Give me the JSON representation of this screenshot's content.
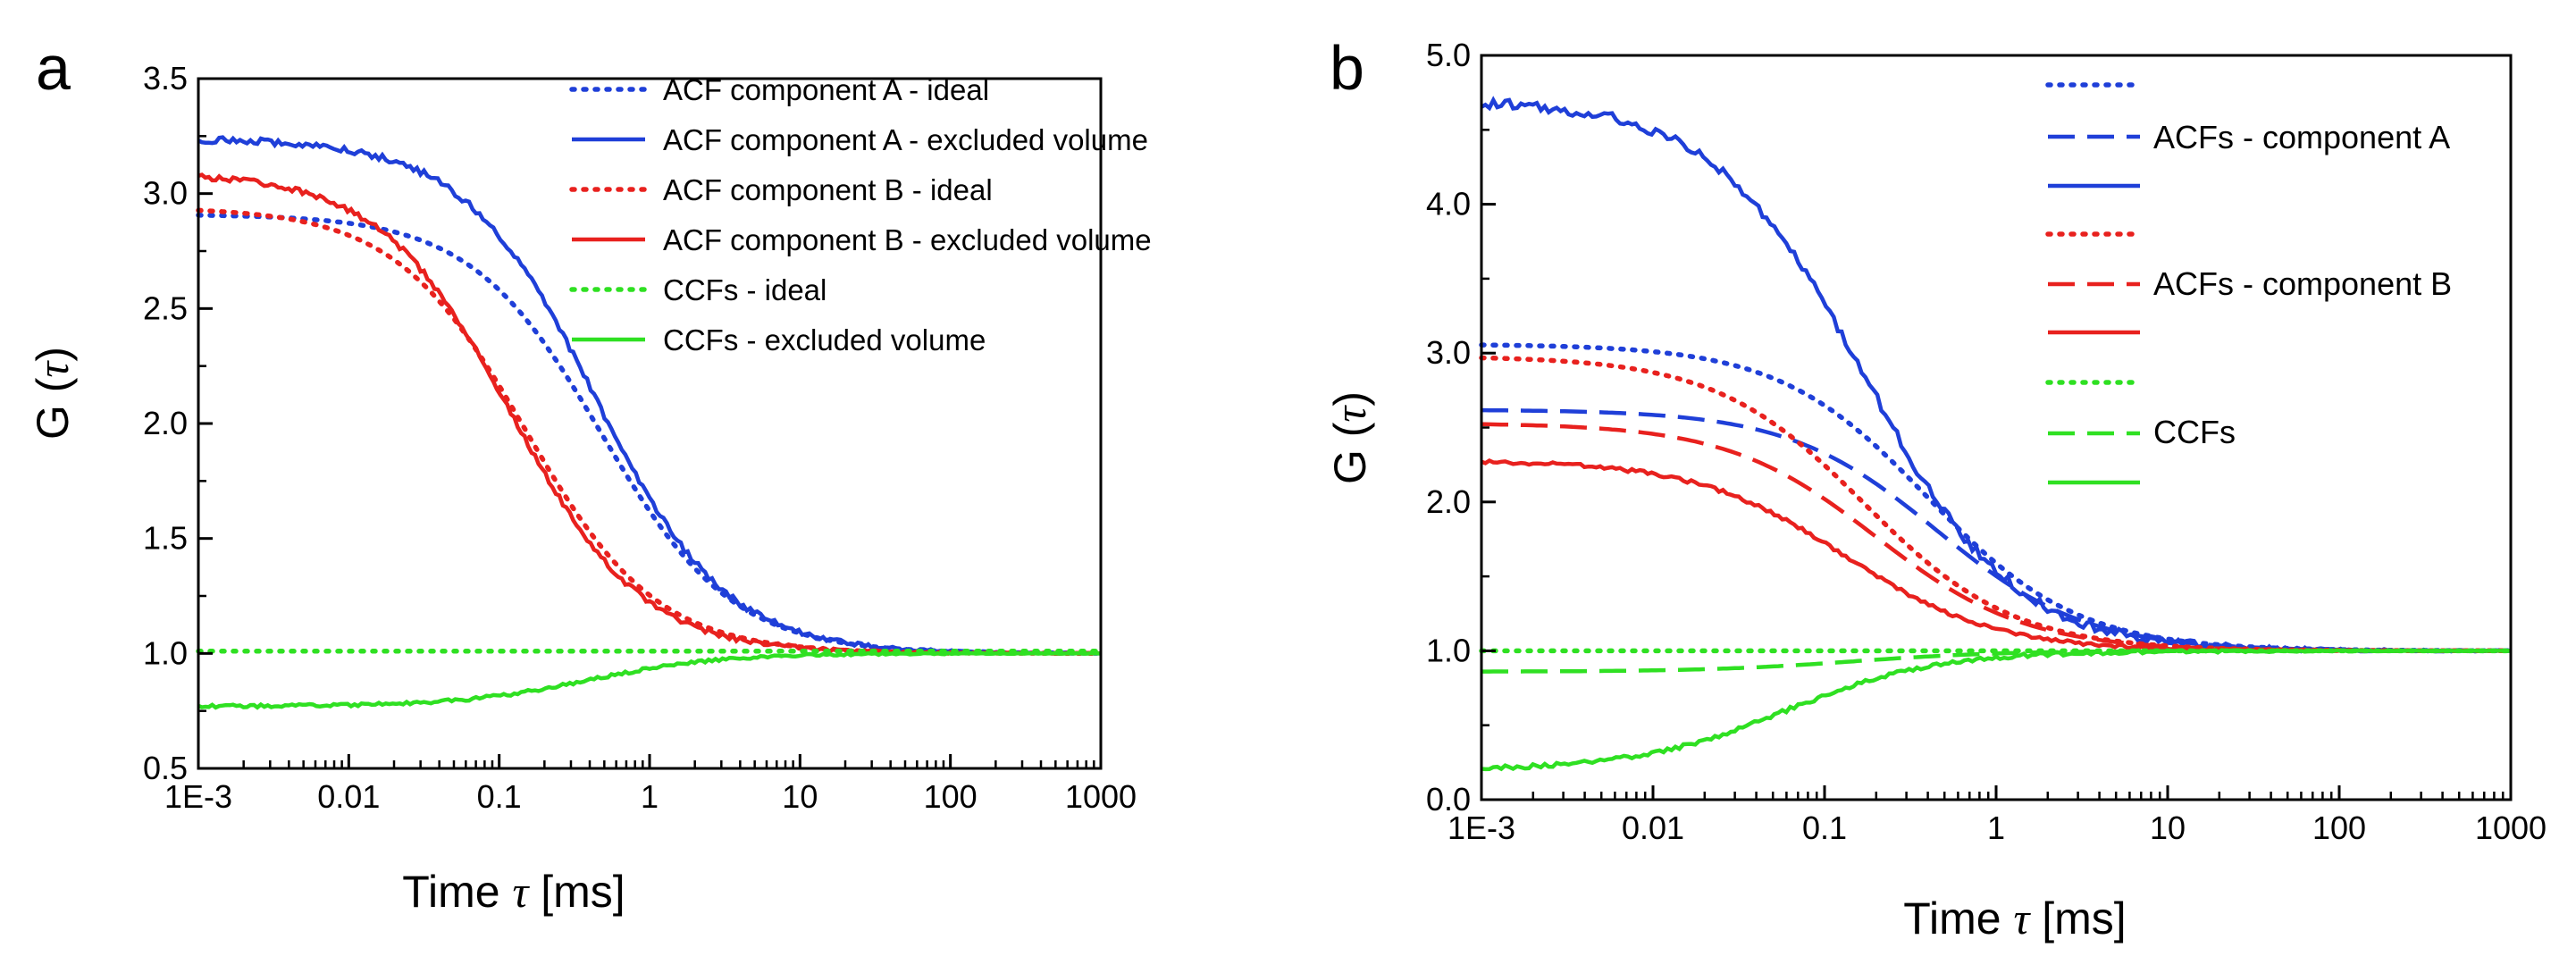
{
  "colors": {
    "blue": "#1f3fd8",
    "red": "#e8211e",
    "green": "#2fe022"
  },
  "chart_data": [
    {
      "panel": "a",
      "type": "line",
      "x_scale": "log",
      "xlabel": "Time",
      "xlabel_symbol": "τ",
      "xlabel_unit": "[ms]",
      "ylabel": "G",
      "ylabel_symbol": "τ",
      "xlim": [
        0.001,
        1000
      ],
      "ylim": [
        0.5,
        3.5
      ],
      "x_ticks": [
        0.001,
        0.01,
        0.1,
        1,
        10,
        100,
        1000
      ],
      "x_tick_labels": [
        "1E-3",
        "0.01",
        "0.1",
        "1",
        "10",
        "100",
        "1000"
      ],
      "y_ticks": [
        0.5,
        1.0,
        1.5,
        2.0,
        2.5,
        3.0,
        3.5
      ],
      "y_tick_labels": [
        "0.5",
        "1.0",
        "1.5",
        "2.0",
        "2.5",
        "3.0",
        "3.5"
      ],
      "legend_position": "top-right",
      "series": [
        {
          "name": "ACF component A - ideal",
          "color": "blue",
          "style": "dotted",
          "model": "decay",
          "G0": 2.91,
          "Ginf": 1.0,
          "tauD": 0.48,
          "noise": 0
        },
        {
          "name": "ACF component A - excluded volume",
          "color": "blue",
          "style": "solid",
          "model": "decay",
          "G0": 3.24,
          "Ginf": 1.0,
          "tauD": 0.43,
          "noise": 0.012
        },
        {
          "name": "ACF component B - ideal",
          "color": "red",
          "style": "dotted",
          "model": "decay",
          "G0": 2.94,
          "Ginf": 1.0,
          "tauD": 0.15,
          "noise": 0
        },
        {
          "name": "ACF component B - excluded volume",
          "color": "red",
          "style": "solid",
          "model": "decay",
          "G0": 3.09,
          "Ginf": 1.0,
          "tauD": 0.12,
          "noise": 0.01
        },
        {
          "name": "CCFs - ideal",
          "color": "green",
          "style": "dotted",
          "model": "flat",
          "G0": 1.01,
          "Ginf": 1.0,
          "tauD": 1,
          "noise": 0
        },
        {
          "name": "CCFs - excluded volume",
          "color": "green",
          "style": "solid",
          "model": "rise",
          "G0": 0.77,
          "Ginf": 1.0,
          "tauD": 0.4,
          "noise": 0.006
        }
      ]
    },
    {
      "panel": "b",
      "type": "line",
      "x_scale": "log",
      "xlabel": "Time",
      "xlabel_symbol": "τ",
      "xlabel_unit": "[ms]",
      "ylabel": "G",
      "ylabel_symbol": "τ",
      "xlim": [
        0.001,
        1000
      ],
      "ylim": [
        0.0,
        5.0
      ],
      "x_ticks": [
        0.001,
        0.01,
        0.1,
        1,
        10,
        100,
        1000
      ],
      "x_tick_labels": [
        "1E-3",
        "0.01",
        "0.1",
        "1",
        "10",
        "100",
        "1000"
      ],
      "y_ticks": [
        0.0,
        1.0,
        2.0,
        3.0,
        4.0,
        5.0
      ],
      "y_tick_labels": [
        "0.0",
        "1.0",
        "2.0",
        "3.0",
        "4.0",
        "5.0"
      ],
      "legend_position": "top-right",
      "legend_groups": [
        "ACFs - component A",
        "ACFs - component B",
        "CCFs"
      ],
      "series": [
        {
          "name": "ACFs - component A (dotted)",
          "color": "blue",
          "style": "dotted",
          "model": "decay",
          "G0": 3.06,
          "Ginf": 1.0,
          "tauD": 0.4,
          "noise": 0
        },
        {
          "name": "ACFs - component A (dashed)",
          "color": "blue",
          "style": "dashed",
          "model": "decay",
          "G0": 2.62,
          "Ginf": 1.0,
          "tauD": 0.45,
          "noise": 0
        },
        {
          "name": "ACFs - component A (solid)",
          "color": "blue",
          "style": "solid",
          "model": "decay",
          "G0": 4.7,
          "Ginf": 1.0,
          "tauD": 0.17,
          "noise": 0.03
        },
        {
          "name": "ACFs - component B (dotted)",
          "color": "red",
          "style": "dotted",
          "model": "decay",
          "G0": 2.98,
          "Ginf": 1.0,
          "tauD": 0.17,
          "noise": 0
        },
        {
          "name": "ACFs - component B (dashed)",
          "color": "red",
          "style": "dashed",
          "model": "decay",
          "G0": 2.53,
          "Ginf": 1.0,
          "tauD": 0.2,
          "noise": 0
        },
        {
          "name": "ACFs - component B (solid)",
          "color": "red",
          "style": "solid",
          "model": "decay",
          "G0": 2.28,
          "Ginf": 1.0,
          "tauD": 0.13,
          "noise": 0.01
        },
        {
          "name": "CCFs (dotted)",
          "color": "green",
          "style": "dotted",
          "model": "flat",
          "G0": 1.0,
          "Ginf": 1.0,
          "tauD": 1,
          "noise": 0
        },
        {
          "name": "CCFs (dashed)",
          "color": "green",
          "style": "dashed",
          "model": "rise",
          "G0": 0.86,
          "Ginf": 1.0,
          "tauD": 0.15,
          "noise": 0
        },
        {
          "name": "CCFs (solid)",
          "color": "green",
          "style": "solid",
          "model": "rise",
          "G0": 0.2,
          "Ginf": 1.0,
          "tauD": 0.06,
          "noise": 0.012
        }
      ]
    }
  ]
}
